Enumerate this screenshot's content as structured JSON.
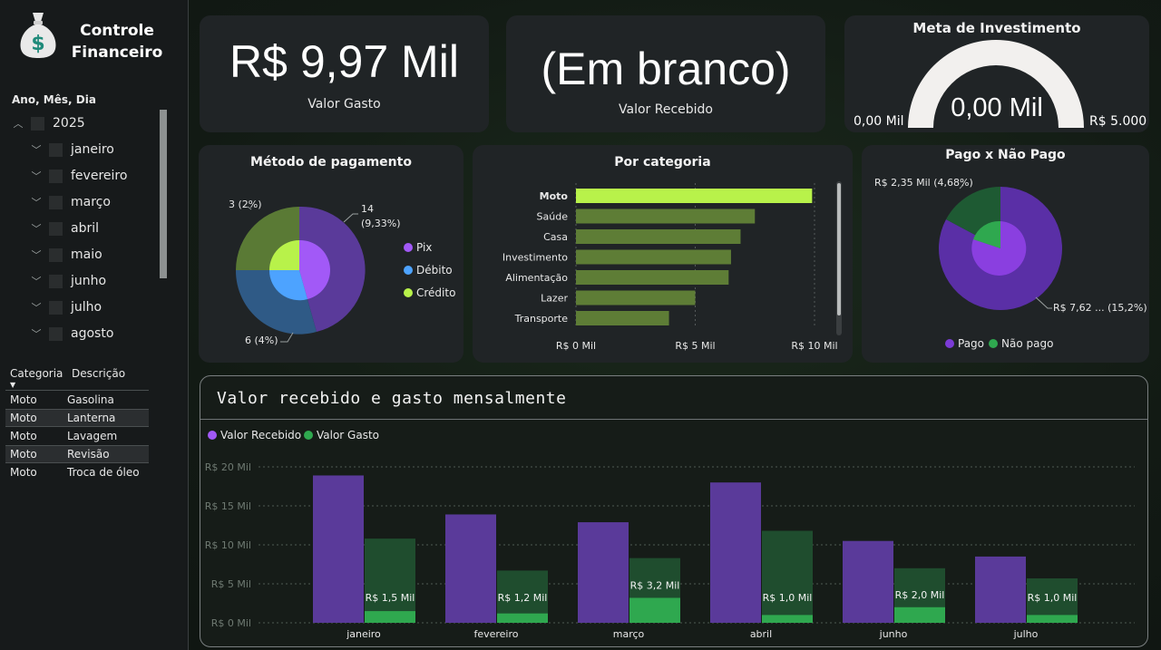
{
  "app": {
    "title_line1": "Controle",
    "title_line2": "Financeiro",
    "logo_icon": "money-bag-icon"
  },
  "date_slicer": {
    "title": "Ano, Mês, Dia",
    "year": "2025",
    "months": [
      "janeiro",
      "fevereiro",
      "março",
      "abril",
      "maio",
      "junho",
      "julho",
      "agosto"
    ]
  },
  "detail_table": {
    "headers": [
      "Categoria",
      "Descrição"
    ],
    "rows": [
      [
        "Moto",
        "Gasolina"
      ],
      [
        "Moto",
        "Lanterna"
      ],
      [
        "Moto",
        "Lavagem"
      ],
      [
        "Moto",
        "Revisão"
      ],
      [
        "Moto",
        "Troca de óleo"
      ]
    ]
  },
  "kpi_spent": {
    "value": "R$ 9,97 Mil",
    "label": "Valor Gasto"
  },
  "kpi_received": {
    "value": "(Em branco)",
    "label": "Valor Recebido"
  },
  "gauge": {
    "title": "Meta de Investimento",
    "value_label": "0,00 Mil",
    "min_label": "0,00 Mil",
    "max_label": "R$ 5.000",
    "fill_fraction": 0
  },
  "payment_method": {
    "title": "Método de pagamento",
    "label_top": "3 (2%)",
    "label_right_1": "14",
    "label_right_2": "(9,33%)",
    "label_bottom": "6 (4%)",
    "legend": [
      {
        "name": "Pix",
        "color": "#a259f7"
      },
      {
        "name": "Débito",
        "color": "#4da3ff"
      },
      {
        "name": "Crédito",
        "color": "#b8f24a"
      }
    ]
  },
  "category_chart": {
    "title": "Por categoria",
    "categories": [
      "Moto",
      "Saúde",
      "Casa",
      "Investimento",
      "Alimentação",
      "Lazer",
      "Transporte"
    ],
    "values": [
      9.9,
      7.5,
      6.9,
      6.5,
      6.4,
      5.0,
      3.9
    ],
    "ticks": [
      "R$ 0 Mil",
      "R$ 5 Mil",
      "R$ 10 Mil"
    ],
    "xmax": 10,
    "highlight_color": "#b8f24a",
    "bar_color": "#5e7d36"
  },
  "paid_chart": {
    "title": "Pago x Não Pago",
    "label_top": "R$ 2,35 Mil (4,68%)",
    "label_bottom": "R$ 7,62 ... (15,2%)",
    "legend": [
      {
        "name": "Pago",
        "color": "#7b3bd6"
      },
      {
        "name": "Não pago",
        "color": "#2fa84f"
      }
    ]
  },
  "chart_data": {
    "type": "bar",
    "title": "Valor recebido e gasto mensalmente",
    "categories": [
      "janeiro",
      "fevereiro",
      "março",
      "abril",
      "junho",
      "julho"
    ],
    "series": [
      {
        "name": "Valor Recebido",
        "color": "#a259f7",
        "values": [
          18.9,
          13.9,
          12.9,
          18.0,
          10.5,
          8.5
        ]
      },
      {
        "name": "Valor Gasto",
        "color": "#2fa84f",
        "values": [
          10.8,
          6.7,
          8.3,
          11.8,
          7.0,
          5.7
        ]
      }
    ],
    "highlight_values": [
      1.5,
      1.2,
      3.2,
      1.0,
      2.0,
      1.0
    ],
    "data_labels": [
      "R$ 1,5 Mil",
      "R$ 1,2 Mil",
      "R$ 3,2 Mil",
      "R$ 1,0 Mil",
      "R$ 2,0 Mil",
      "R$ 1,0 Mil"
    ],
    "y_ticks": [
      "R$ 0 Mil",
      "R$ 5 Mil",
      "R$ 10 Mil",
      "R$ 15 Mil",
      "R$ 20 Mil"
    ],
    "ylim": [
      0,
      20
    ],
    "legend_position": "top-left",
    "grid": true
  }
}
